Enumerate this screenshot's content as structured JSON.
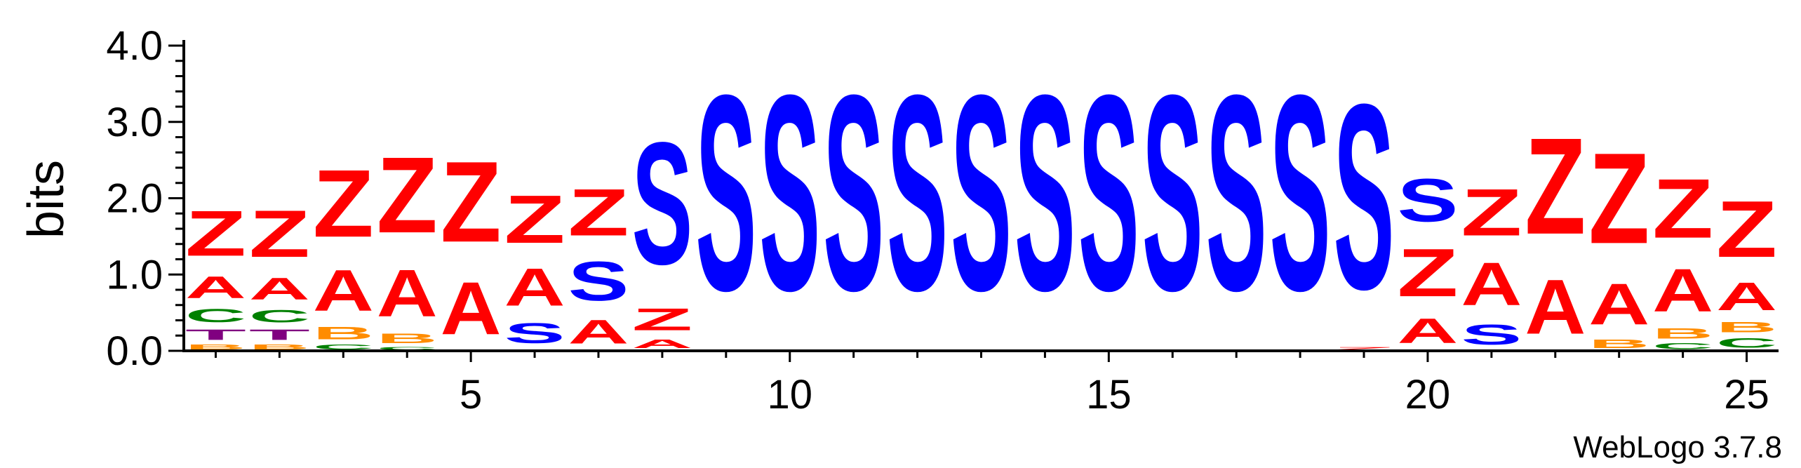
{
  "chart_data": {
    "type": "sequence-logo",
    "ylabel": "bits",
    "ylim": [
      0,
      4.0
    ],
    "yticks": [
      "0.0",
      "1.0",
      "2.0",
      "3.0",
      "4.0"
    ],
    "xticks": [
      5,
      10,
      15,
      20,
      25
    ],
    "positions": [
      1,
      2,
      3,
      4,
      5,
      6,
      7,
      8,
      9,
      10,
      11,
      12,
      13,
      14,
      15,
      16,
      17,
      18,
      19,
      20,
      21,
      22,
      23,
      24,
      25
    ],
    "colors": {
      "Z": "#ff0000",
      "A": "#ff0000",
      "S": "#0000ff",
      "C": "#008000",
      "T": "#800080",
      "B": "#ff8c00"
    },
    "stacks": [
      [
        [
          "B",
          0.1
        ],
        [
          "T",
          0.22
        ],
        [
          "C",
          0.28
        ],
        [
          "A",
          0.46
        ],
        [
          "Z",
          0.95
        ]
      ],
      [
        [
          "B",
          0.1
        ],
        [
          "T",
          0.22
        ],
        [
          "C",
          0.26
        ],
        [
          "A",
          0.46
        ],
        [
          "Z",
          0.98
        ]
      ],
      [
        [
          "C",
          0.1
        ],
        [
          "B",
          0.26
        ],
        [
          "A",
          0.86
        ],
        [
          "Z",
          1.41
        ]
      ],
      [
        [
          "C",
          0.06
        ],
        [
          "B",
          0.2
        ],
        [
          "A",
          0.98
        ],
        [
          "Z",
          1.59
        ]
      ],
      [
        [
          "A",
          1.1
        ],
        [
          "Z",
          1.69
        ]
      ],
      [
        [
          "C",
          0.02
        ],
        [
          "S",
          0.42
        ],
        [
          "A",
          0.78
        ],
        [
          "Z",
          1.0
        ]
      ],
      [
        [
          "A",
          0.5
        ],
        [
          "S",
          0.82
        ],
        [
          "Z",
          0.98
        ]
      ],
      [
        [
          "A",
          0.18
        ],
        [
          "Z",
          0.46
        ],
        [
          "S",
          2.56
        ]
      ],
      [
        [
          "S",
          4.1
        ]
      ],
      [
        [
          "S",
          4.1
        ]
      ],
      [
        [
          "S",
          4.1
        ]
      ],
      [
        [
          "S",
          4.1
        ]
      ],
      [
        [
          "S",
          4.1
        ]
      ],
      [
        [
          "S",
          4.1
        ]
      ],
      [
        [
          "S",
          4.1
        ]
      ],
      [
        [
          "S",
          4.1
        ]
      ],
      [
        [
          "S",
          4.1
        ]
      ],
      [
        [
          "S",
          4.1
        ]
      ],
      [
        [
          "Z",
          0.06
        ],
        [
          "S",
          3.88
        ]
      ],
      [
        [
          "A",
          0.52
        ],
        [
          "Z",
          1.0
        ],
        [
          "S",
          0.9
        ]
      ],
      [
        [
          "S",
          0.42
        ],
        [
          "A",
          0.9
        ],
        [
          "Z",
          0.98
        ]
      ],
      [
        [
          "A",
          1.14
        ],
        [
          "Z",
          2.02
        ]
      ],
      [
        [
          "B",
          0.18
        ],
        [
          "A",
          0.86
        ],
        [
          "Z",
          1.9
        ]
      ],
      [
        [
          "C",
          0.12
        ],
        [
          "B",
          0.22
        ],
        [
          "A",
          0.9
        ],
        [
          "Z",
          1.24
        ]
      ],
      [
        [
          "C",
          0.2
        ],
        [
          "B",
          0.22
        ],
        [
          "A",
          0.58
        ],
        [
          "Z",
          1.18
        ]
      ]
    ]
  },
  "credit": "WebLogo 3.7.8"
}
